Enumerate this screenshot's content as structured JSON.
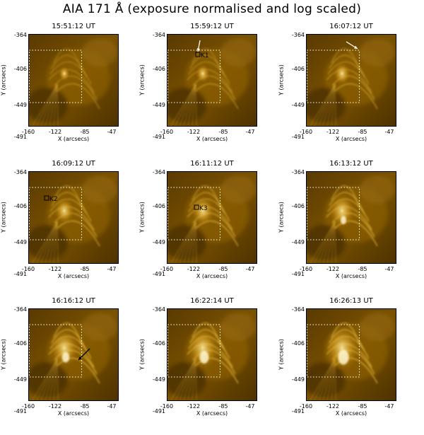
{
  "title": "AIA 171 Å (exposure normalised and log scaled)",
  "axes": {
    "xlabel": "X (arcsecs)",
    "ylabel": "Y (arcsecs)",
    "xticks": [
      "-160",
      "-122",
      "-85",
      "-47"
    ],
    "yticks": [
      "-364",
      "-406",
      "-449",
      "-491"
    ]
  },
  "panels": [
    {
      "time": "15:51:12 UT",
      "markers": [],
      "arrows": []
    },
    {
      "time": "15:59:12 UT",
      "markers": [
        "K1"
      ],
      "arrows": [
        "white-arrow"
      ]
    },
    {
      "time": "16:07:12 UT",
      "markers": [],
      "arrows": [
        "white-arrow"
      ]
    },
    {
      "time": "16:09:12 UT",
      "markers": [
        "K2"
      ],
      "arrows": []
    },
    {
      "time": "16:11:12 UT",
      "markers": [
        "K3"
      ],
      "arrows": []
    },
    {
      "time": "16:13:12 UT",
      "markers": [],
      "arrows": []
    },
    {
      "time": "16:16:12 UT",
      "markers": [],
      "arrows": [
        "black-arrow"
      ]
    },
    {
      "time": "16:22:14 UT",
      "markers": [],
      "arrows": []
    },
    {
      "time": "16:26:13 UT",
      "markers": [],
      "arrows": []
    }
  ],
  "colors": {
    "background": "#6e4800",
    "bright": "#ffe066",
    "dark": "#2e1c00"
  }
}
